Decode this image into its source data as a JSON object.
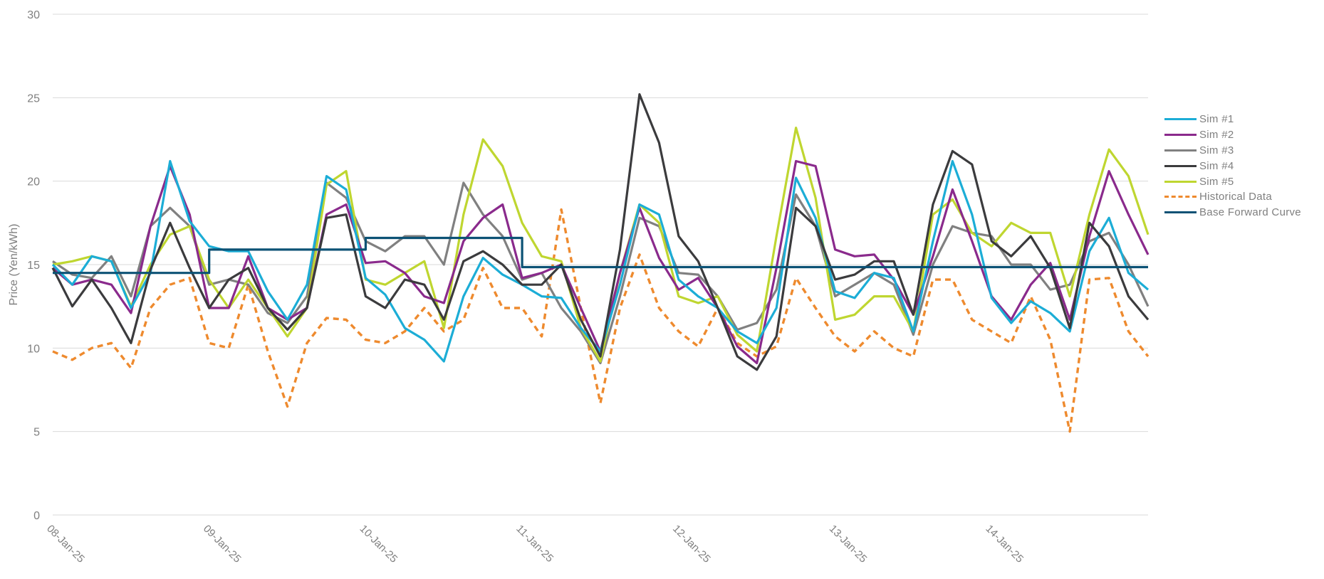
{
  "chart_data": {
    "type": "line",
    "title": "",
    "xlabel": "",
    "ylabel": "Price (Yen/kWh)",
    "ylim": [
      0,
      30
    ],
    "y_ticks": [
      0,
      5,
      10,
      15,
      20,
      25,
      30
    ],
    "x_unit": "hours from 08-Jan-25 00:00",
    "x_step_hours": 3,
    "x_range_hours": [
      0,
      168
    ],
    "x_tick_labels": [
      "08-Jan-25",
      "09-Jan-25",
      "10-Jan-25",
      "11-Jan-25",
      "12-Jan-25",
      "13-Jan-25",
      "14-Jan-25"
    ],
    "grid": "horizontal",
    "legend_position": "right",
    "series": [
      {
        "name": "Sim #1",
        "color": "#1cadd6",
        "style": "solid",
        "values": [
          15,
          13.8,
          15.5,
          15.2,
          12.4,
          14.5,
          21.2,
          17.6,
          16.1,
          15.8,
          15.8,
          13.4,
          11.7,
          13.8,
          20.3,
          19.5,
          14.2,
          13.2,
          11.2,
          10.5,
          9.2,
          13.1,
          15.4,
          14.4,
          13.8,
          13.1,
          13,
          11.2,
          9.8,
          13.8,
          18.6,
          18,
          14.1,
          13.1,
          12.4,
          11,
          10.3,
          12.4,
          20.2,
          17.8,
          13.4,
          13,
          14.5,
          14.2,
          11,
          16.4,
          21.2,
          18,
          13,
          11.5,
          12.8,
          12.1,
          11,
          15.8,
          17.8,
          14.5,
          13.5
        ]
      },
      {
        "name": "Sim #2",
        "color": "#8a2a8c",
        "style": "solid",
        "values": [
          14.8,
          13.8,
          14.1,
          13.8,
          12.1,
          17.3,
          20.9,
          18,
          12.4,
          12.4,
          15.5,
          12.4,
          11.7,
          12.4,
          18,
          18.6,
          15.1,
          15.2,
          14.5,
          13.1,
          12.7,
          16.4,
          17.8,
          18.6,
          14.2,
          14.5,
          15,
          12.4,
          9.8,
          14.5,
          18.4,
          15.4,
          13.5,
          14.2,
          12.4,
          10.1,
          9.1,
          14.8,
          21.2,
          20.9,
          15.9,
          15.5,
          15.6,
          14.1,
          12,
          15.5,
          19.5,
          16.4,
          13.1,
          11.7,
          13.8,
          15.1,
          11.7,
          16.7,
          20.6,
          18,
          15.6
        ]
      },
      {
        "name": "Sim #3",
        "color": "#808080",
        "style": "solid",
        "values": [
          15.2,
          14.4,
          14.2,
          15.5,
          13.1,
          17.3,
          18.4,
          17.3,
          13.8,
          14.1,
          13.8,
          12.1,
          11.5,
          13.1,
          19.9,
          19,
          16.4,
          15.8,
          16.7,
          16.7,
          15,
          19.9,
          18,
          16.7,
          14.1,
          14.5,
          12.4,
          11,
          9.1,
          13.1,
          17.8,
          17.3,
          14.5,
          14.4,
          13.1,
          11.1,
          11.5,
          13.5,
          19.2,
          17.3,
          13.1,
          13.8,
          14.5,
          13.8,
          10.8,
          15,
          17.3,
          16.9,
          16.7,
          15,
          15,
          13.5,
          13.8,
          16.4,
          16.9,
          15,
          12.5
        ]
      },
      {
        "name": "Sim #4",
        "color": "#3b3b3d",
        "style": "solid",
        "values": [
          14.8,
          12.5,
          14.1,
          12.4,
          10.3,
          14.7,
          17.5,
          14.8,
          12.4,
          14.1,
          14.8,
          12.4,
          11.1,
          12.4,
          17.8,
          18,
          13.1,
          12.4,
          14.1,
          13.8,
          11.7,
          15.2,
          15.8,
          15,
          13.8,
          13.8,
          15,
          11.7,
          9.5,
          15.9,
          25.2,
          22.3,
          16.7,
          15.2,
          12.4,
          9.5,
          8.7,
          10.7,
          18.4,
          17.3,
          14.1,
          14.4,
          15.2,
          15.2,
          12,
          18.6,
          21.8,
          21,
          16.4,
          15.5,
          16.7,
          14.8,
          11.2,
          17.5,
          16.1,
          13.1,
          11.7
        ]
      },
      {
        "name": "Sim #5",
        "color": "#bfd630",
        "style": "solid",
        "values": [
          15,
          15.2,
          15.5,
          15.2,
          12.5,
          15,
          16.8,
          17.3,
          14.1,
          12.4,
          14.1,
          12.4,
          10.7,
          12.4,
          19.8,
          20.6,
          14.1,
          13.8,
          14.5,
          15.2,
          11.2,
          18,
          22.5,
          20.9,
          17.5,
          15.5,
          15.2,
          11.2,
          9.2,
          14.5,
          18.6,
          17.5,
          13.1,
          12.7,
          13.1,
          10.8,
          9.8,
          16.7,
          23.2,
          19,
          11.7,
          12,
          13.1,
          13.1,
          11,
          18,
          18.9,
          16.9,
          16.1,
          17.5,
          16.9,
          16.9,
          13.1,
          18,
          21.9,
          20.3,
          16.8
        ]
      },
      {
        "name": "Historical Data",
        "color": "#ee8a2e",
        "style": "dashed",
        "values": [
          9.8,
          9.3,
          10,
          10.3,
          8.8,
          12.4,
          13.8,
          14.2,
          10.3,
          10,
          13.8,
          9.8,
          6.5,
          10.3,
          11.8,
          11.7,
          10.5,
          10.3,
          11,
          12.4,
          11,
          11.7,
          14.8,
          12.4,
          12.4,
          10.7,
          18.3,
          12.4,
          6.7,
          12.4,
          15.6,
          12.4,
          11,
          10.1,
          12.4,
          10.3,
          9.5,
          10.1,
          14.2,
          12.4,
          10.7,
          9.8,
          11,
          10,
          9.5,
          14.1,
          14.1,
          11.7,
          11,
          10.3,
          13.1,
          10.5,
          5.0,
          14.1,
          14.2,
          11,
          9.5
        ]
      },
      {
        "name": "Base Forward Curve",
        "color": "#0c5275",
        "style": "step",
        "daily_values": [
          14.5,
          15.9,
          16.6,
          14.85,
          14.85,
          14.85,
          14.85
        ]
      }
    ]
  }
}
